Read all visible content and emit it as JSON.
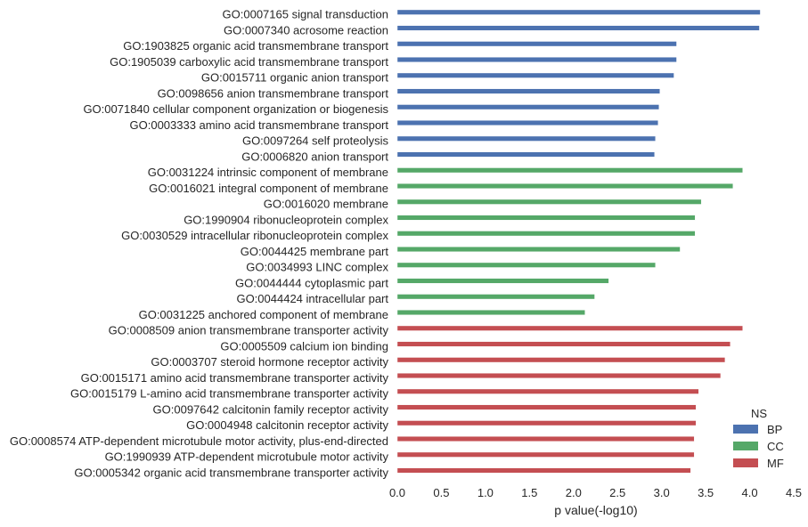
{
  "chart_data": {
    "type": "bar",
    "orientation": "horizontal",
    "xlabel": "p value(-log10)",
    "ylabel": "",
    "xlim": [
      0,
      4.5
    ],
    "xticks": [
      "0.0",
      "0.5",
      "1.0",
      "1.5",
      "2.0",
      "2.5",
      "3.0",
      "3.5",
      "4.0",
      "4.5"
    ],
    "grid": false,
    "legend": {
      "title": "NS",
      "placement": "bottom-right",
      "entries": [
        {
          "name": "BP",
          "color": "#4c72b0"
        },
        {
          "name": "CC",
          "color": "#55a868"
        },
        {
          "name": "MF",
          "color": "#c44e52"
        }
      ]
    },
    "categories": [
      "GO:0007165 signal transduction",
      "GO:0007340 acrosome reaction",
      "GO:1903825 organic acid transmembrane transport",
      "GO:1905039 carboxylic acid transmembrane transport",
      "GO:0015711 organic anion transport",
      "GO:0098656 anion transmembrane transport",
      "GO:0071840 cellular component organization or biogenesis",
      "GO:0003333 amino acid transmembrane transport",
      "GO:0097264 self proteolysis",
      "GO:0006820 anion transport",
      "GO:0031224 intrinsic component of membrane",
      "GO:0016021 integral component of membrane",
      "GO:0016020 membrane",
      "GO:1990904 ribonucleoprotein complex",
      "GO:0030529 intracellular ribonucleoprotein complex",
      "GO:0044425 membrane part",
      "GO:0034993 LINC complex",
      "GO:0044444 cytoplasmic part",
      "GO:0044424 intracellular part",
      "GO:0031225 anchored component of membrane",
      "GO:0008509 anion transmembrane transporter activity",
      "GO:0005509 calcium ion binding",
      "GO:0003707 steroid hormone receptor activity",
      "GO:0015171 amino acid transmembrane transporter activity",
      "GO:0015179 L-amino acid transmembrane transporter activity",
      "GO:0097642 calcitonin family receptor activity",
      "GO:0004948 calcitonin receptor activity",
      "GO:0008574 ATP-dependent microtubule motor activity, plus-end-directed",
      "GO:1990939 ATP-dependent microtubule motor activity",
      "GO:0005342 organic acid transmembrane transporter activity"
    ],
    "values": [
      4.12,
      4.11,
      3.17,
      3.17,
      3.14,
      2.98,
      2.97,
      2.96,
      2.93,
      2.92,
      3.92,
      3.81,
      3.45,
      3.38,
      3.38,
      3.21,
      2.93,
      2.4,
      2.24,
      2.13,
      3.92,
      3.78,
      3.72,
      3.67,
      3.42,
      3.39,
      3.39,
      3.37,
      3.37,
      3.33
    ],
    "groups": [
      "BP",
      "BP",
      "BP",
      "BP",
      "BP",
      "BP",
      "BP",
      "BP",
      "BP",
      "BP",
      "CC",
      "CC",
      "CC",
      "CC",
      "CC",
      "CC",
      "CC",
      "CC",
      "CC",
      "CC",
      "MF",
      "MF",
      "MF",
      "MF",
      "MF",
      "MF",
      "MF",
      "MF",
      "MF",
      "MF"
    ]
  }
}
